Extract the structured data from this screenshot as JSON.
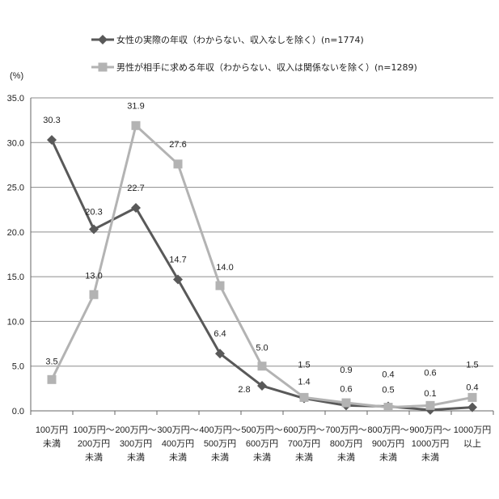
{
  "chart_data": {
    "type": "line",
    "ylabel": "(%)",
    "ylim": [
      0,
      35
    ],
    "yticks": [
      "0.0",
      "5.0",
      "10.0",
      "15.0",
      "20.0",
      "25.0",
      "30.0",
      "35.0"
    ],
    "grid": true,
    "legend_position": "top",
    "categories": [
      [
        "100万円",
        "未満"
      ],
      [
        "100万円～",
        "200万円",
        "未満"
      ],
      [
        "200万円～",
        "300万円",
        "未満"
      ],
      [
        "300万円～",
        "400万円",
        "未満"
      ],
      [
        "400万円～",
        "500万円",
        "未満"
      ],
      [
        "500万円～",
        "600万円",
        "未満"
      ],
      [
        "600万円～",
        "700万円",
        "未満"
      ],
      [
        "700万円～",
        "800万円",
        "未満"
      ],
      [
        "800万円～",
        "900万円",
        "未満"
      ],
      [
        "900万円～",
        "1000万円",
        "未満"
      ],
      [
        "1000万円",
        "以上"
      ]
    ],
    "series": [
      {
        "name": "女性の実際の年収（わからない、収入なしを除く）(n=1774)",
        "color": "#595959",
        "marker": "diamond",
        "values": [
          30.3,
          20.3,
          22.7,
          14.7,
          6.4,
          2.8,
          1.4,
          0.6,
          0.5,
          0.1,
          0.4
        ]
      },
      {
        "name": "男性が相手に求める年収（わからない、収入は関係ないを除く）(n=1289)",
        "color": "#b3b3b3",
        "marker": "square",
        "values": [
          3.5,
          13.0,
          31.9,
          27.6,
          14.0,
          5.0,
          1.5,
          0.9,
          0.4,
          0.6,
          1.5
        ]
      }
    ]
  }
}
